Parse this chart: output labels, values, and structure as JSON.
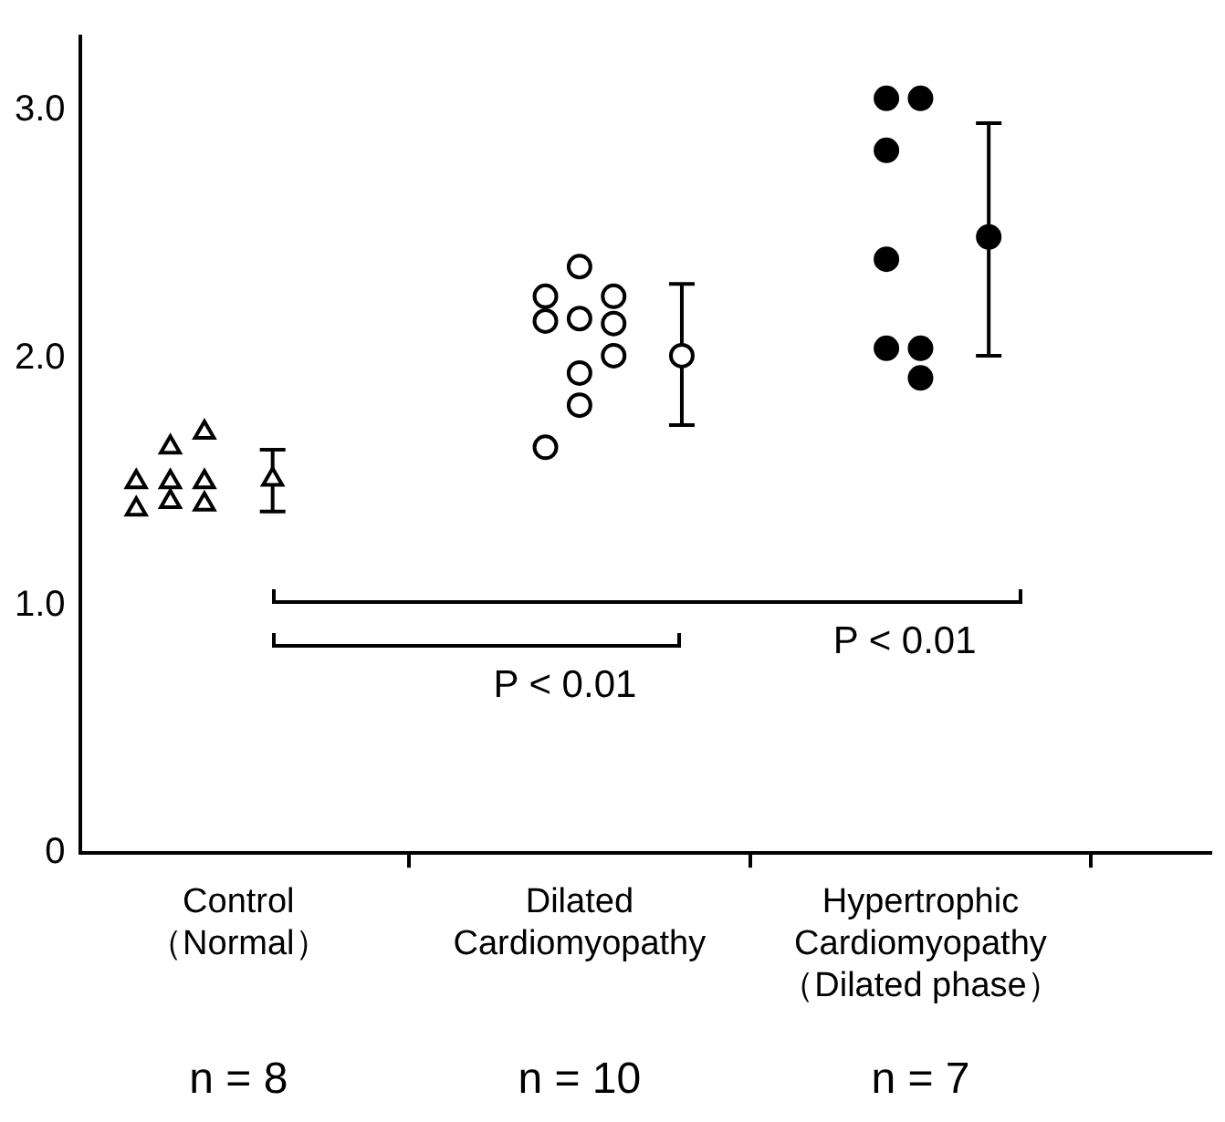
{
  "chart_data": {
    "type": "scatter",
    "categories": [
      null,
      null,
      null,
      null,
      "Control\n（Normal）",
      null,
      null,
      null,
      null,
      null,
      null,
      null,
      null,
      null,
      "Dilated\nCardiomyopathy",
      null,
      null,
      null,
      null,
      null,
      null,
      null,
      null,
      null,
      "Hypertrophic\nCardiomyopathy\n（Dilated phase）",
      null,
      null,
      null,
      null,
      null,
      null,
      null,
      null
    ],
    "ylim": [
      0,
      3.3
    ],
    "yticks": [
      0,
      {
        "value": 1,
        "label": "1.0"
      },
      {
        "value": 2,
        "label": "2.0"
      },
      {
        "value": 3,
        "label": "3.0"
      }
    ],
    "legend": false,
    "series": [
      {
        "color": "#ffffff",
        "marker": "triangle",
        "values": [
          null,
          1.5,
          1.64,
          1.7,
          null,
          null,
          null,
          null,
          null,
          null,
          null,
          null,
          null,
          null,
          null,
          null,
          null,
          null,
          null,
          null,
          null,
          null,
          null,
          null,
          null,
          null,
          null,
          null,
          null,
          null,
          null,
          null,
          null
        ]
      },
      {
        "color": "#ffffff",
        "marker": "triangle",
        "values": [
          null,
          1.39,
          1.5,
          1.5,
          null,
          null,
          null,
          null,
          null,
          null,
          null,
          null,
          null,
          null,
          null,
          null,
          null,
          null,
          null,
          null,
          null,
          null,
          null,
          null,
          null,
          null,
          null,
          null,
          null,
          null,
          null,
          null,
          null
        ]
      },
      {
        "color": "#ffffff",
        "marker": "triangle",
        "values": [
          null,
          null,
          1.42,
          1.41,
          null,
          null,
          null,
          null,
          null,
          null,
          null,
          null,
          null,
          null,
          null,
          null,
          null,
          null,
          null,
          null,
          null,
          null,
          null,
          null,
          null,
          null,
          null,
          null,
          null,
          null,
          null,
          null,
          null
        ]
      },
      {
        "color": "#ffffff",
        "marker": "triangle",
        "values": [
          null,
          null,
          null,
          null,
          null,
          1.51,
          null,
          null,
          null,
          null,
          null,
          null,
          null,
          null,
          null,
          null,
          null,
          null,
          null,
          null,
          null,
          null,
          null,
          null,
          null,
          null,
          null,
          null,
          null,
          null,
          null,
          null,
          null
        ],
        "errors": [
          null,
          null,
          null,
          null,
          null,
          [
            1.38,
            1.63
          ],
          null,
          null,
          null,
          null,
          null,
          null,
          null,
          null,
          null,
          null,
          null,
          null,
          null,
          null,
          null,
          null,
          null,
          null,
          null,
          null,
          null,
          null,
          null,
          null,
          null,
          null,
          null
        ]
      },
      {
        "color": "#ffffff",
        "marker": "circle",
        "values": [
          null,
          null,
          null,
          null,
          null,
          null,
          null,
          null,
          null,
          null,
          null,
          null,
          null,
          2.25,
          2.37,
          2.25,
          null,
          null,
          null,
          null,
          null,
          null,
          null,
          null,
          null,
          null,
          null,
          null,
          null,
          null,
          null,
          null,
          null
        ]
      },
      {
        "color": "#ffffff",
        "marker": "circle",
        "values": [
          null,
          null,
          null,
          null,
          null,
          null,
          null,
          null,
          null,
          null,
          null,
          null,
          null,
          2.15,
          2.16,
          2.14,
          null,
          null,
          null,
          null,
          null,
          null,
          null,
          null,
          null,
          null,
          null,
          null,
          null,
          null,
          null,
          null,
          null
        ]
      },
      {
        "color": "#ffffff",
        "marker": "circle",
        "values": [
          null,
          null,
          null,
          null,
          null,
          null,
          null,
          null,
          null,
          null,
          null,
          null,
          null,
          1.64,
          1.94,
          2.01,
          null,
          null,
          null,
          null,
          null,
          null,
          null,
          null,
          null,
          null,
          null,
          null,
          null,
          null,
          null,
          null,
          null
        ]
      },
      {
        "color": "#ffffff",
        "marker": "circle",
        "values": [
          null,
          null,
          null,
          null,
          null,
          null,
          null,
          null,
          null,
          null,
          null,
          null,
          null,
          null,
          1.81,
          null,
          null,
          null,
          null,
          null,
          null,
          null,
          null,
          null,
          null,
          null,
          null,
          null,
          null,
          null,
          null,
          null,
          null
        ]
      },
      {
        "color": "#ffffff",
        "marker": "circle",
        "values": [
          null,
          null,
          null,
          null,
          null,
          null,
          null,
          null,
          null,
          null,
          null,
          null,
          null,
          null,
          null,
          null,
          null,
          2.01,
          null,
          null,
          null,
          null,
          null,
          null,
          null,
          null,
          null,
          null,
          null,
          null,
          null,
          null,
          null
        ],
        "errors": [
          null,
          null,
          null,
          null,
          null,
          null,
          null,
          null,
          null,
          null,
          null,
          null,
          null,
          null,
          null,
          null,
          null,
          [
            1.73,
            2.3
          ],
          null,
          null,
          null,
          null,
          null,
          null,
          null,
          null,
          null,
          null,
          null,
          null,
          null,
          null,
          null
        ]
      },
      {
        "color": "#000000",
        "marker": "circle",
        "values": [
          null,
          null,
          null,
          null,
          null,
          null,
          null,
          null,
          null,
          null,
          null,
          null,
          null,
          null,
          null,
          null,
          null,
          null,
          null,
          null,
          null,
          null,
          null,
          3.05,
          3.05,
          null,
          null,
          null,
          null,
          null,
          null,
          null,
          null
        ]
      },
      {
        "color": "#000000",
        "marker": "circle",
        "values": [
          null,
          null,
          null,
          null,
          null,
          null,
          null,
          null,
          null,
          null,
          null,
          null,
          null,
          null,
          null,
          null,
          null,
          null,
          null,
          null,
          null,
          null,
          null,
          2.84,
          2.04,
          null,
          null,
          null,
          null,
          null,
          null,
          null,
          null
        ]
      },
      {
        "color": "#000000",
        "marker": "circle",
        "values": [
          null,
          null,
          null,
          null,
          null,
          null,
          null,
          null,
          null,
          null,
          null,
          null,
          null,
          null,
          null,
          null,
          null,
          null,
          null,
          null,
          null,
          null,
          null,
          2.4,
          1.92,
          null,
          null,
          null,
          null,
          null,
          null,
          null,
          null
        ]
      },
      {
        "color": "#000000",
        "marker": "circle",
        "values": [
          null,
          null,
          null,
          null,
          null,
          null,
          null,
          null,
          null,
          null,
          null,
          null,
          null,
          null,
          null,
          null,
          null,
          null,
          null,
          null,
          null,
          null,
          null,
          2.04,
          null,
          null,
          null,
          null,
          null,
          null,
          null,
          null,
          null
        ]
      },
      {
        "color": "#000000",
        "marker": "circle",
        "values": [
          null,
          null,
          null,
          null,
          null,
          null,
          null,
          null,
          null,
          null,
          null,
          null,
          null,
          null,
          null,
          null,
          null,
          null,
          null,
          null,
          null,
          null,
          null,
          null,
          null,
          null,
          2.49,
          null,
          null,
          null,
          null,
          null,
          null
        ],
        "errors": [
          null,
          null,
          null,
          null,
          null,
          null,
          null,
          null,
          null,
          null,
          null,
          null,
          null,
          null,
          null,
          null,
          null,
          null,
          null,
          null,
          null,
          null,
          null,
          null,
          null,
          null,
          [
            2.01,
            2.95
          ],
          null,
          null,
          null,
          null,
          null,
          null
        ]
      }
    ],
    "annotations": [
      "P < 0.01",
      "P < 0.01",
      "n = 8",
      "n = 10",
      "n = 7"
    ]
  }
}
